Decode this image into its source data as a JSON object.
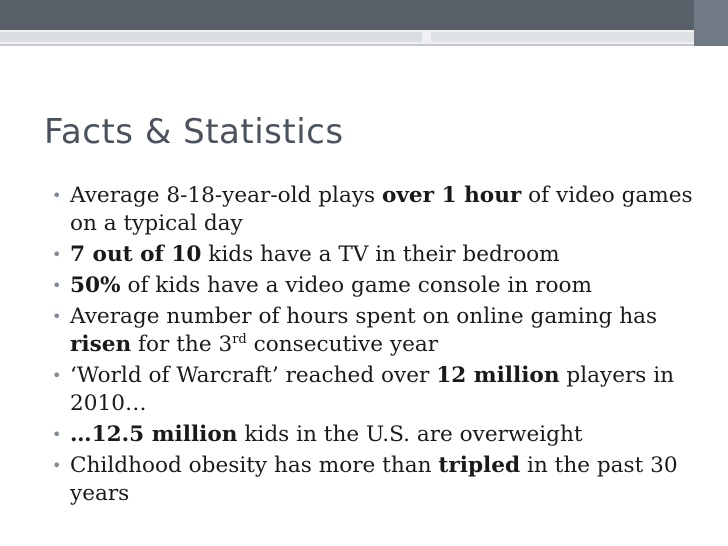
{
  "slide": {
    "title": "Facts & Statistics",
    "bullets": [
      {
        "parts": [
          {
            "t": "Average 8-18-year-old plays "
          },
          {
            "t": "over 1 hour",
            "b": true
          },
          {
            "t": " of video games on a typical day"
          }
        ]
      },
      {
        "parts": [
          {
            "t": "7 out of 10",
            "b": true
          },
          {
            "t": " kids have a TV in their bedroom"
          }
        ]
      },
      {
        "parts": [
          {
            "t": "50%",
            "b": true
          },
          {
            "t": " of kids have a video game console in room"
          }
        ]
      },
      {
        "parts": [
          {
            "t": "Average number of hours spent on online gaming has "
          },
          {
            "t": "risen",
            "b": true
          },
          {
            "t": " for the 3"
          },
          {
            "t": "rd",
            "sup": true
          },
          {
            "t": " consecutive year"
          }
        ]
      },
      {
        "parts": [
          {
            "t": "‘World of Warcraft’ reached over "
          },
          {
            "t": "12 million",
            "b": true
          },
          {
            "t": " players in 2010…"
          }
        ]
      },
      {
        "parts": [
          {
            "t": "…12.5 million",
            "b": true
          },
          {
            "t": " kids in the U.S. are overweight"
          }
        ]
      },
      {
        "parts": [
          {
            "t": "Childhood obesity has more than "
          },
          {
            "t": "tripled",
            "b": true
          },
          {
            "t": " in the past 30 years"
          }
        ]
      }
    ]
  },
  "colors": {
    "band_dark": "#58606a",
    "title": "#4a535d",
    "bullet_dot": "#7f8a96"
  }
}
